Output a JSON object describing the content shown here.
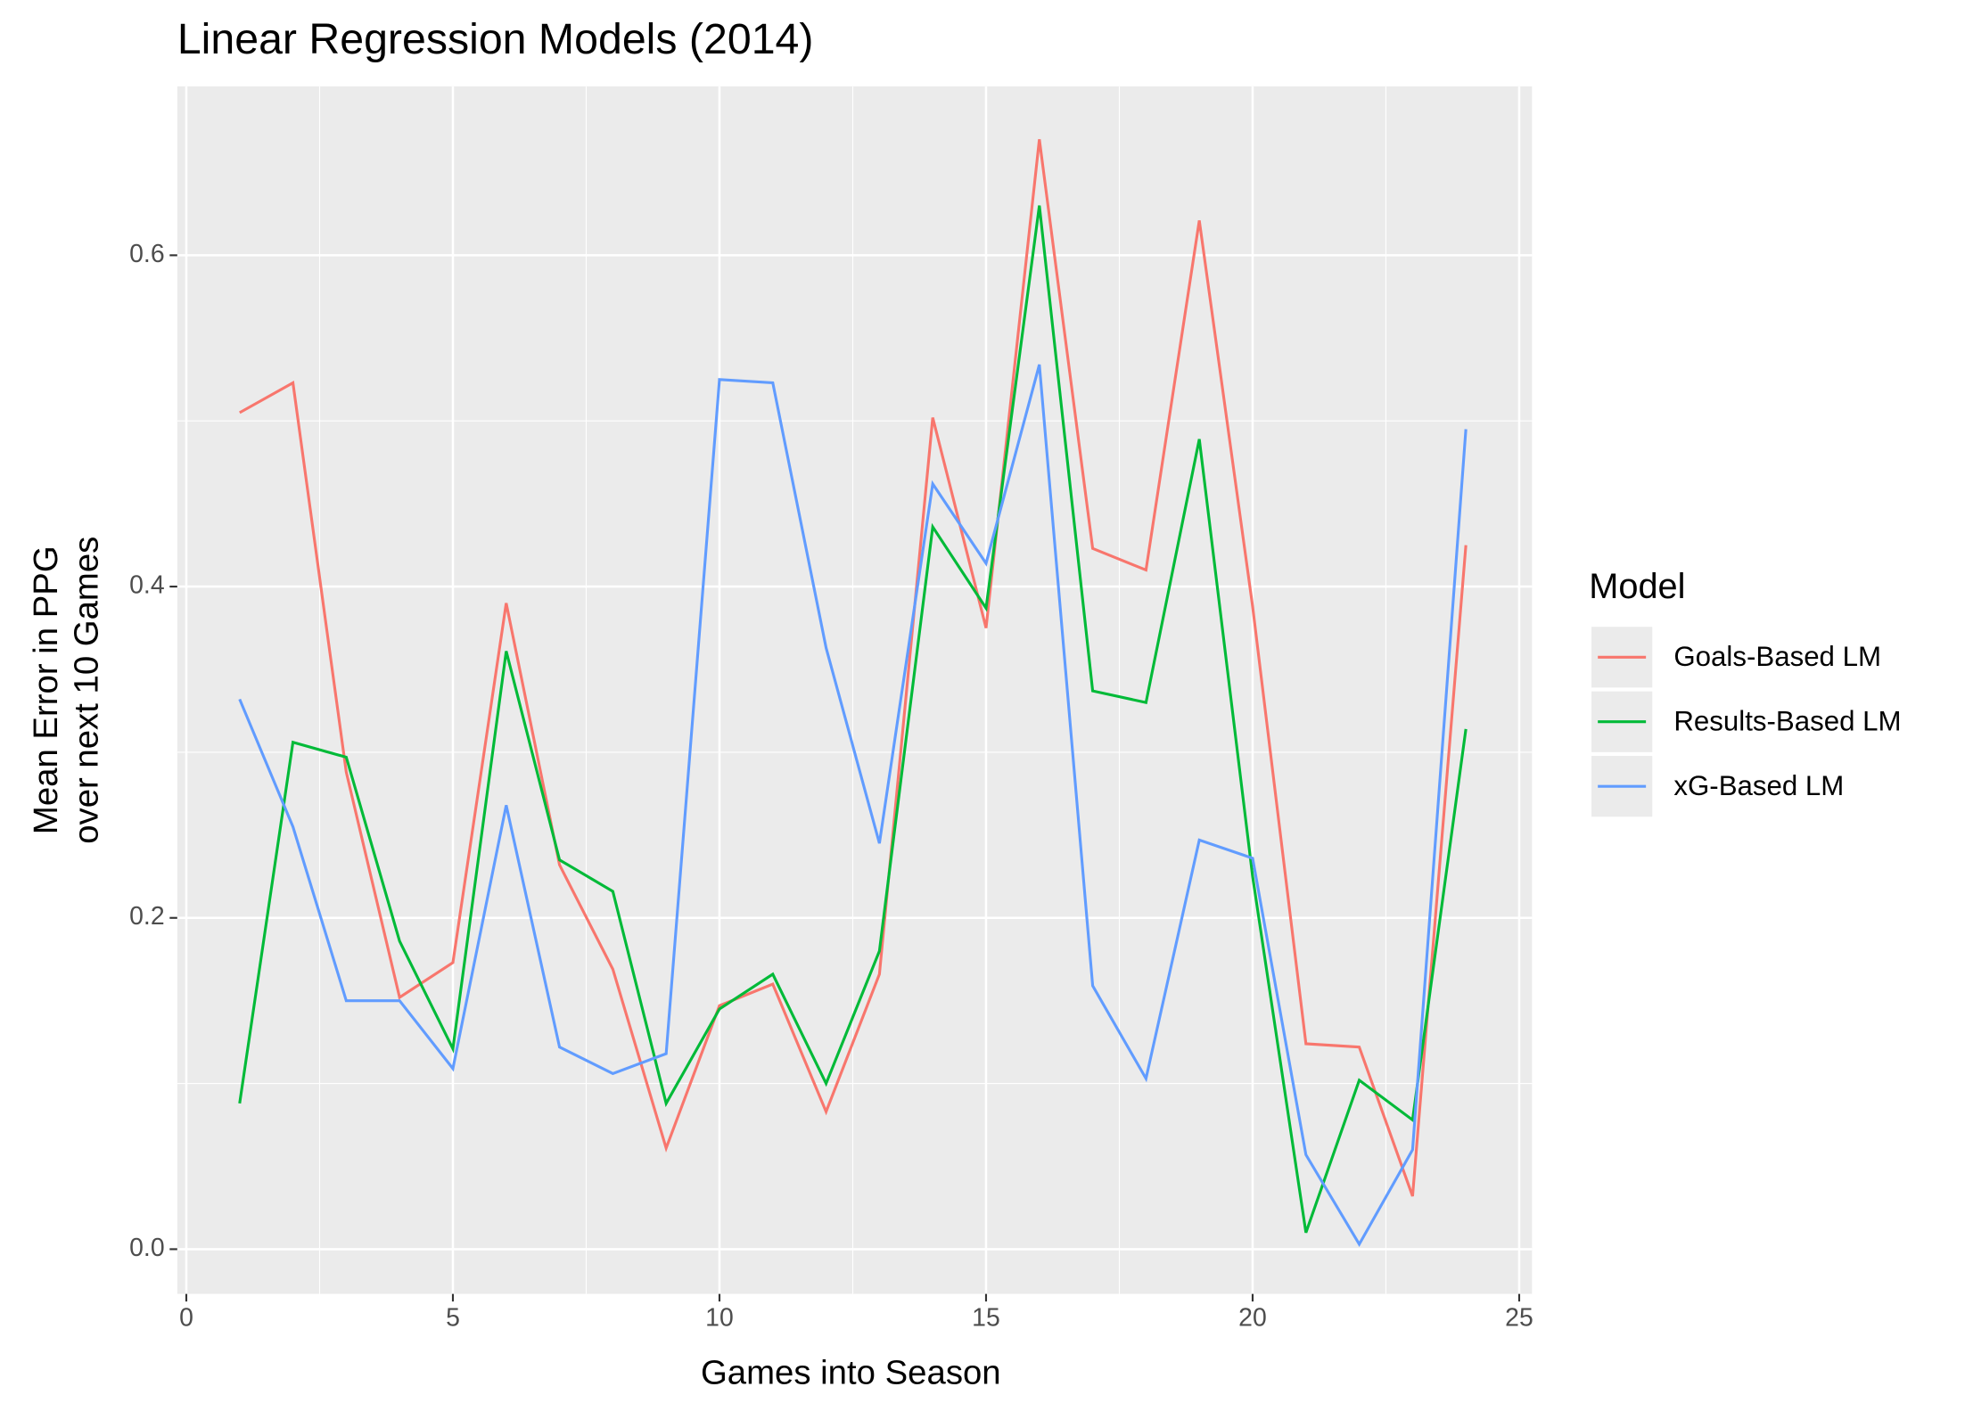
{
  "chart_data": {
    "type": "line",
    "title": "Linear Regression Models (2014)",
    "xlabel": "Games into Season",
    "ylabel": [
      "Mean Error in PPG",
      "over next 10 Games"
    ],
    "legend_title": "Model",
    "legend": "right",
    "grid": true,
    "x": [
      1,
      2,
      3,
      4,
      5,
      6,
      7,
      8,
      9,
      10,
      11,
      12,
      13,
      14,
      15,
      16,
      17,
      18,
      19,
      20,
      21,
      22,
      23,
      24
    ],
    "series": [
      {
        "name": "Goals-Based LM",
        "color": "#f8766d",
        "values": [
          0.505,
          0.523,
          0.288,
          0.152,
          0.173,
          0.39,
          0.232,
          0.169,
          0.061,
          0.147,
          0.16,
          0.083,
          0.166,
          0.502,
          0.375,
          0.67,
          0.423,
          0.41,
          0.621,
          0.388,
          0.124,
          0.122,
          0.032,
          0.425
        ]
      },
      {
        "name": "Results-Based LM",
        "color": "#00ba38",
        "values": [
          0.088,
          0.306,
          0.297,
          0.186,
          0.121,
          0.361,
          0.235,
          0.216,
          0.088,
          0.145,
          0.166,
          0.1,
          0.18,
          0.436,
          0.387,
          0.63,
          0.337,
          0.33,
          0.489,
          0.225,
          0.01,
          0.102,
          0.078,
          0.314
        ]
      },
      {
        "name": "xG-Based LM",
        "color": "#619cff",
        "values": [
          0.332,
          0.255,
          0.15,
          0.15,
          0.109,
          0.268,
          0.122,
          0.106,
          0.118,
          0.525,
          0.523,
          0.363,
          0.245,
          0.462,
          0.414,
          0.534,
          0.159,
          0.103,
          0.247,
          0.236,
          0.057,
          0.003,
          0.06,
          0.495
        ]
      }
    ],
    "xlim": [
      -0.17,
      25.24
    ],
    "xticks": [
      0,
      5,
      10,
      15,
      20,
      25
    ],
    "ylim": [
      -0.027,
      0.702
    ],
    "yticks": [
      {
        "value": 0,
        "label": "0.0"
      },
      0.2,
      0.4,
      0.6
    ]
  }
}
